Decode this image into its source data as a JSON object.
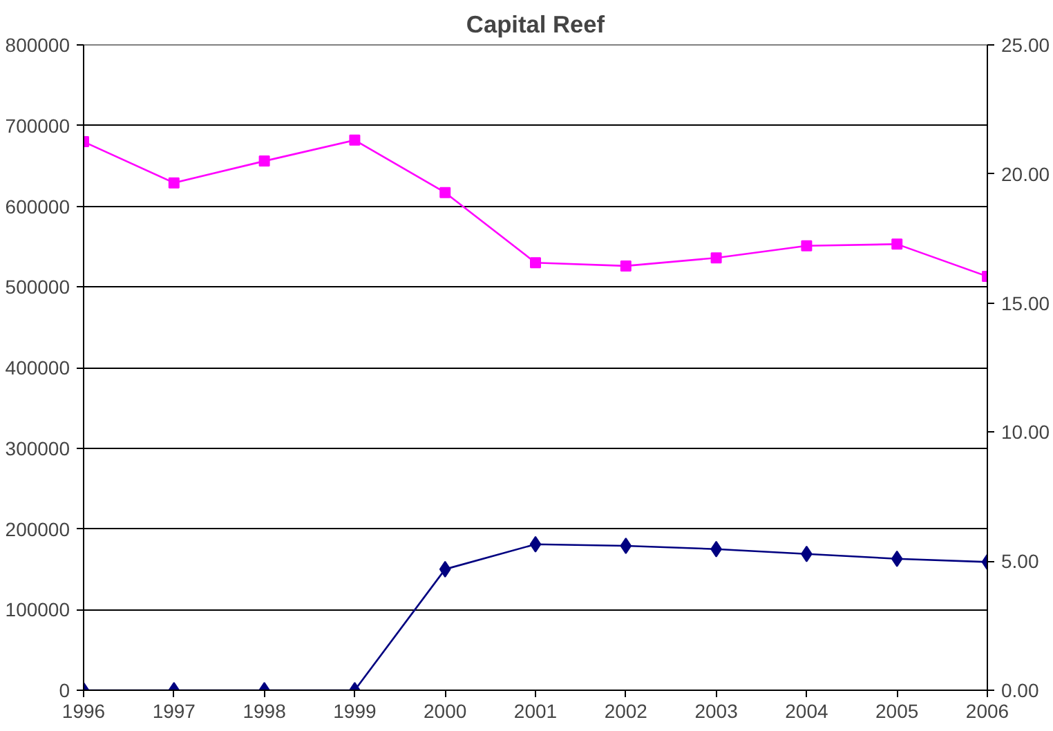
{
  "chart_data": {
    "type": "line",
    "title": "Capital Reef",
    "x": [
      1996,
      1997,
      1998,
      1999,
      2000,
      2001,
      2002,
      2003,
      2004,
      2005,
      2006
    ],
    "xlim": [
      1996,
      2006
    ],
    "xticks": [
      1996,
      1997,
      1998,
      1999,
      2000,
      2001,
      2002,
      2003,
      2004,
      2005,
      2006
    ],
    "ylim": [
      0,
      800000
    ],
    "yticks": [
      0,
      100000,
      200000,
      300000,
      400000,
      500000,
      600000,
      700000,
      800000
    ],
    "y2lim": [
      0,
      25
    ],
    "y2ticks": [
      {
        "value": 0,
        "label": "0.00"
      },
      {
        "value": 5,
        "label": "5.00"
      },
      {
        "value": 10,
        "label": "10.00"
      },
      {
        "value": 15,
        "label": "15.00"
      },
      {
        "value": 20,
        "label": "20.00"
      },
      {
        "value": 25,
        "label": "25.00"
      }
    ],
    "grid": "y",
    "series": [
      {
        "color": "#ff00ff",
        "marker": "square",
        "values": [
          680000,
          629000,
          656000,
          682000,
          617000,
          530000,
          526000,
          536000,
          551000,
          553000,
          513000
        ]
      },
      {
        "color": "#000080",
        "marker": "diamond",
        "values": [
          0,
          0,
          0,
          0,
          150000,
          181000,
          179000,
          175000,
          169000,
          163000,
          159000
        ]
      }
    ]
  }
}
